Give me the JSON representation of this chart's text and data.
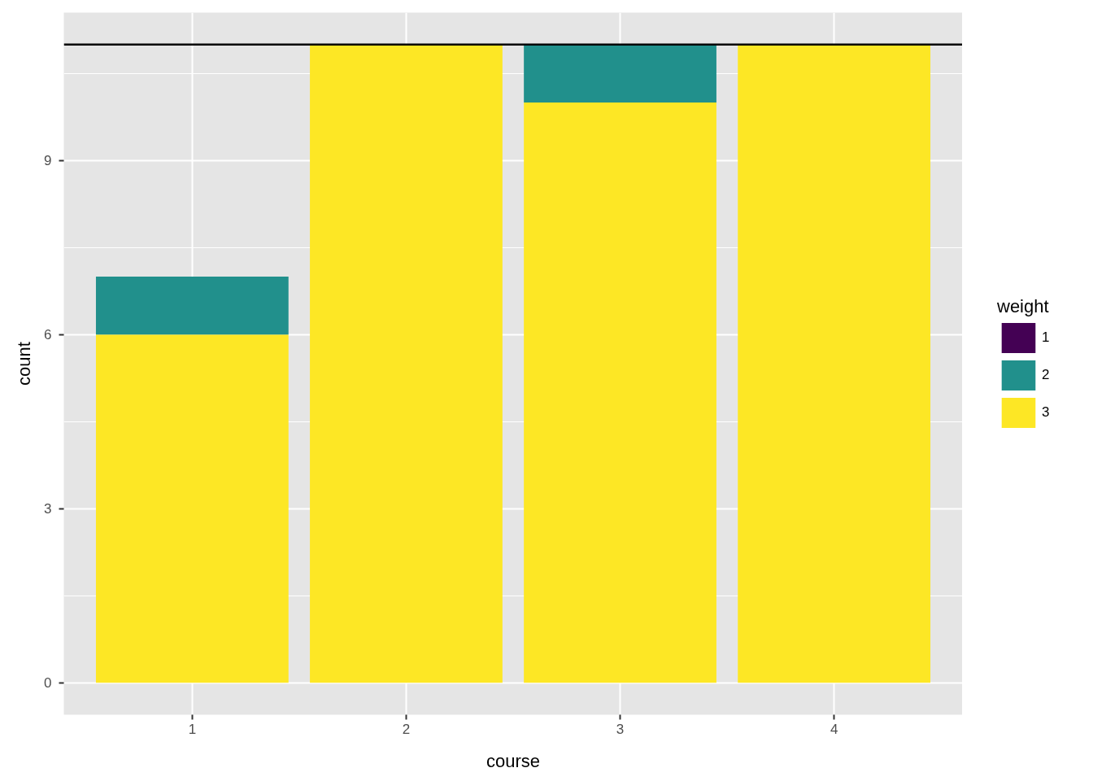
{
  "chart_data": {
    "type": "bar",
    "stacked": true,
    "categories": [
      "1",
      "2",
      "3",
      "4"
    ],
    "series": [
      {
        "name": "3",
        "color": "#fde725",
        "values": [
          6,
          11,
          10,
          11
        ]
      },
      {
        "name": "2",
        "color": "#21908c",
        "values": [
          1,
          null,
          1,
          null
        ]
      },
      {
        "name": "1",
        "color": "#440154",
        "values": [
          null,
          null,
          null,
          null
        ]
      }
    ],
    "xlabel": "course",
    "ylabel": "count",
    "legend_title": "weight",
    "ylim": [
      -0.55,
      11.55
    ],
    "yticks": [
      0,
      3,
      6,
      9
    ],
    "grid": true,
    "legend": "right",
    "ref_lines": [
      {
        "axis": "y",
        "value": 11,
        "color": "#000000"
      }
    ]
  }
}
